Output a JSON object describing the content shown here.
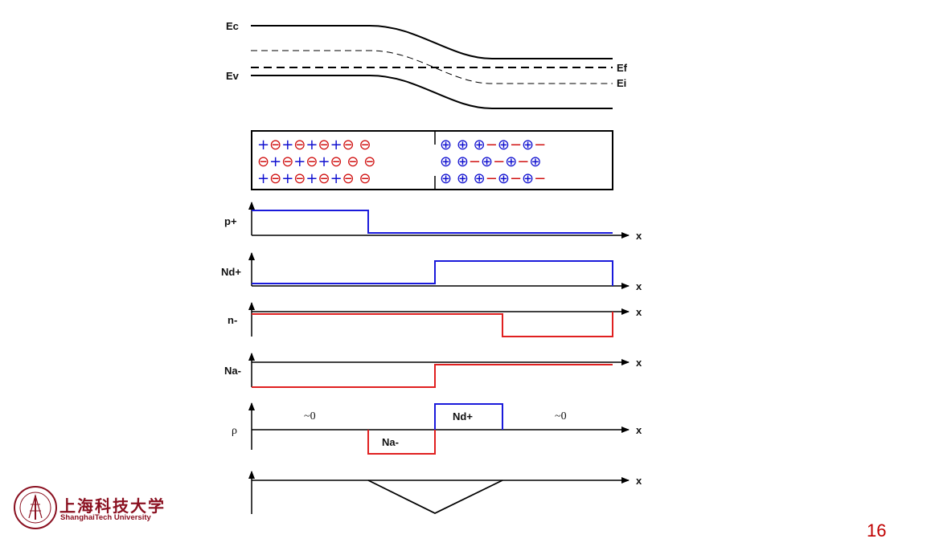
{
  "band_diagram": {
    "ec_label": "Ec",
    "ev_label": "Ev",
    "ef_label": "Ef",
    "ei_label": "Ei"
  },
  "junction": {
    "p_side_rows": [
      "+⊖+⊖+⊖+⊖  ⊖",
      "⊖+⊖+⊖+⊖  ⊖  ⊖",
      "+⊖+⊖+⊖+⊖  ⊖"
    ],
    "n_side_rows": [
      "⊕  ⊕  ⊕−⊕−⊕−",
      "⊕  ⊕−⊕−⊕−⊕",
      "⊕  ⊕  ⊕−⊕−⊕−"
    ],
    "p_color": "#d01010",
    "p_plus_color": "#1010d0",
    "n_color": "#1010d0",
    "n_minus_color": "#d01010"
  },
  "plots": {
    "p_plus_label": "p+",
    "nd_plus_label": "Nd+",
    "n_minus_label": "n-",
    "na_minus_label": "Na-",
    "rho_label": "ρ",
    "x_label": "x",
    "rho_left": "~0",
    "rho_right": "~0",
    "rho_nd": "Nd+",
    "rho_na": "Na-",
    "blue": "#1a1adb",
    "red": "#e02020"
  },
  "logo": {
    "name_cn": "上海科技大学",
    "name_en": "ShanghaiTech University",
    "color": "#8a1020"
  },
  "page_number": "16"
}
